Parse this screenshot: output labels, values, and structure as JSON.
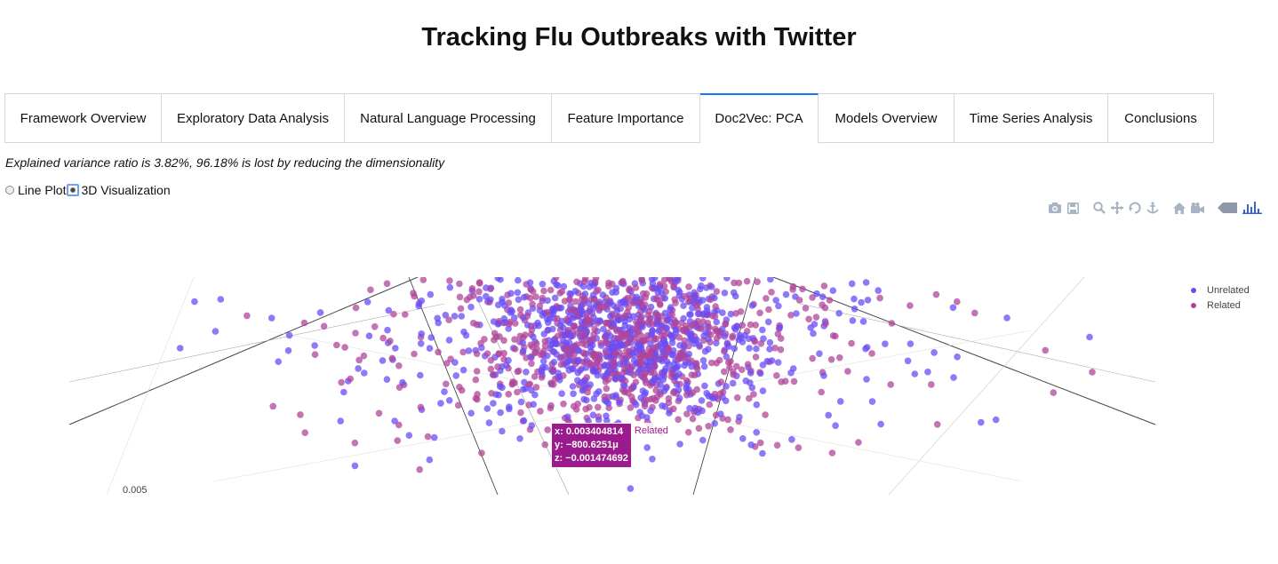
{
  "page": {
    "title": "Tracking Flu Outbreaks with Twitter"
  },
  "tabs": [
    {
      "label": "Framework Overview",
      "active": false
    },
    {
      "label": "Exploratory Data Analysis",
      "active": false
    },
    {
      "label": "Natural Language Processing",
      "active": false
    },
    {
      "label": "Feature Importance",
      "active": false
    },
    {
      "label": "Doc2Vec: PCA",
      "active": true
    },
    {
      "label": "Models Overview",
      "active": false
    },
    {
      "label": "Time Series Analysis",
      "active": false
    },
    {
      "label": "Conclusions",
      "active": false
    }
  ],
  "variance_text": "Explained variance ratio is 3.82%, 96.18% is lost by reducing the dimensionality",
  "radio_options": [
    {
      "label": "Line Plot",
      "selected": false
    },
    {
      "label": "3D Visualization",
      "selected": true
    }
  ],
  "modebar_icons": [
    "camera-icon",
    "save-icon",
    "zoom-icon",
    "pan-icon",
    "orbit-icon",
    "turntable-icon",
    "home-icon",
    "camera-view-icon",
    "hover-icon",
    "plotly-logo-icon"
  ],
  "legend": [
    {
      "name": "Unrelated",
      "color": "#6a4cf5"
    },
    {
      "name": "Related",
      "color": "#b0449a"
    }
  ],
  "axis_tick_partial": "0.005",
  "hover": {
    "x": "x: 0.003404814",
    "y": "y: −800.6251μ",
    "z": "z: −0.001474692",
    "name": "Related"
  },
  "chart_data": {
    "type": "scatter",
    "title": "",
    "series": [
      {
        "name": "Unrelated",
        "color": "#6a4cf5"
      },
      {
        "name": "Related",
        "color": "#b0449a"
      }
    ],
    "highlighted_point": {
      "series": "Related",
      "x": 0.003404814,
      "y": -0.0008006251,
      "z": -0.001474692
    }
  }
}
